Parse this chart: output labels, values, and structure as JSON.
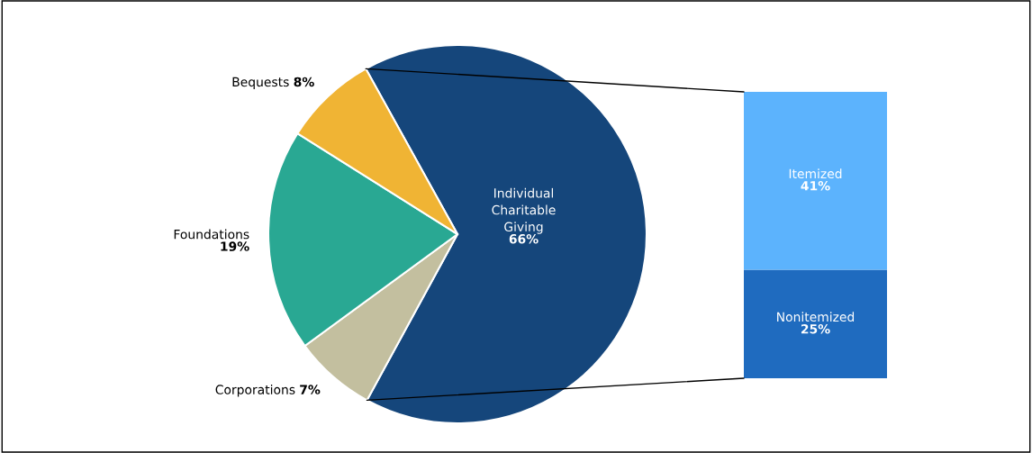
{
  "chart_data": [
    {
      "type": "pie",
      "categories": [
        "Individual\nCharitable\nGiving",
        "Corporations",
        "Foundations",
        "Bequests"
      ],
      "values": [
        66,
        7,
        19,
        8
      ],
      "colors": [
        "#15467b",
        "#c3bf9f",
        "#29a893",
        "#f0b434"
      ],
      "value_labels": [
        "66%",
        "7%",
        "19%",
        "8%"
      ]
    },
    {
      "type": "bar",
      "stacked": true,
      "categories": [
        null
      ],
      "series": [
        {
          "name": "Nonitemized",
          "color": "#1f6bbf",
          "values": [
            25
          ],
          "value_labels": [
            "25%"
          ]
        },
        {
          "name": "Itemized",
          "color": "#5cb3fd",
          "values": [
            41
          ],
          "value_labels": [
            "41%"
          ]
        }
      ]
    }
  ]
}
